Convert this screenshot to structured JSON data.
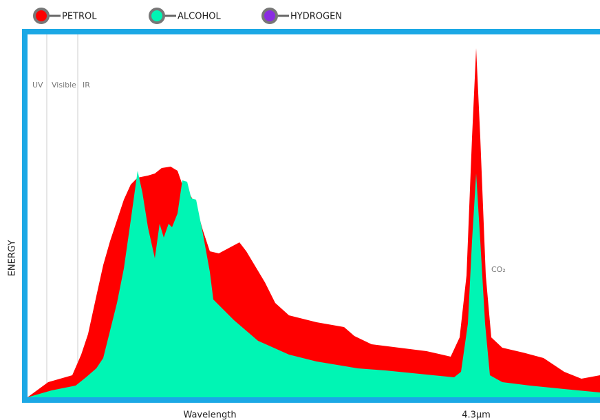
{
  "chart_data": {
    "type": "area",
    "x_label": "Wavelength",
    "y_label": "ENERGY",
    "xlim": [
      0,
      832
    ],
    "ylim": [
      0,
      527
    ],
    "xticks": [
      {
        "value": 652,
        "label": "4.3μm"
      }
    ],
    "regions": [
      {
        "label": "UV",
        "from": 0,
        "to": 28
      },
      {
        "label": "Visible",
        "from": 28,
        "to": 73
      },
      {
        "label": "IR",
        "from": 73
      }
    ],
    "annotations": [
      {
        "text": "CO₂",
        "x": 672,
        "y": 185
      }
    ],
    "frame_color": "#1ba8e5",
    "series": [
      {
        "name": "PETROL",
        "color": "#ff0000",
        "x": [
          0,
          30,
          65,
          78,
          88,
          100,
          110,
          120,
          130,
          140,
          150,
          160,
          175,
          185,
          195,
          208,
          218,
          225,
          235,
          245,
          255,
          265,
          278,
          293,
          308,
          318,
          330,
          345,
          360,
          380,
          420,
          460,
          475,
          500,
          540,
          580,
          615,
          628,
          638,
          646,
          652,
          658,
          666,
          674,
          690,
          720,
          750,
          780,
          805,
          832
        ],
        "values": [
          0,
          22,
          32,
          62,
          92,
          147,
          192,
          227,
          257,
          287,
          309,
          319,
          322,
          325,
          333,
          335,
          329,
          309,
          297,
          277,
          242,
          212,
          209,
          217,
          225,
          212,
          192,
          167,
          137,
          119,
          109,
          102,
          89,
          77,
          72,
          67,
          59,
          87,
          177,
          377,
          507,
          377,
          177,
          87,
          72,
          65,
          57,
          37,
          27,
          32
        ]
      },
      {
        "name": "ALCOHOL",
        "color": "#00f5b4",
        "x": [
          0,
          35,
          70,
          85,
          100,
          110,
          120,
          130,
          140,
          150,
          160,
          167,
          175,
          185,
          192,
          198,
          205,
          210,
          218,
          225,
          232,
          238,
          245,
          255,
          265,
          270,
          300,
          335,
          380,
          420,
          480,
          520,
          560,
          620,
          630,
          640,
          646,
          652,
          658,
          665,
          672,
          690,
          730,
          780,
          832
        ],
        "values": [
          0,
          10,
          17,
          29,
          42,
          57,
          97,
          137,
          187,
          257,
          329,
          297,
          247,
          202,
          252,
          232,
          252,
          247,
          267,
          315,
          313,
          289,
          287,
          237,
          182,
          142,
          112,
          82,
          62,
          52,
          42,
          39,
          35,
          29,
          37,
          107,
          227,
          325,
          227,
          107,
          32,
          22,
          17,
          12,
          7
        ]
      },
      {
        "name": "HYDROGEN",
        "color": "#8a2be2",
        "x": [],
        "values": []
      }
    ]
  }
}
